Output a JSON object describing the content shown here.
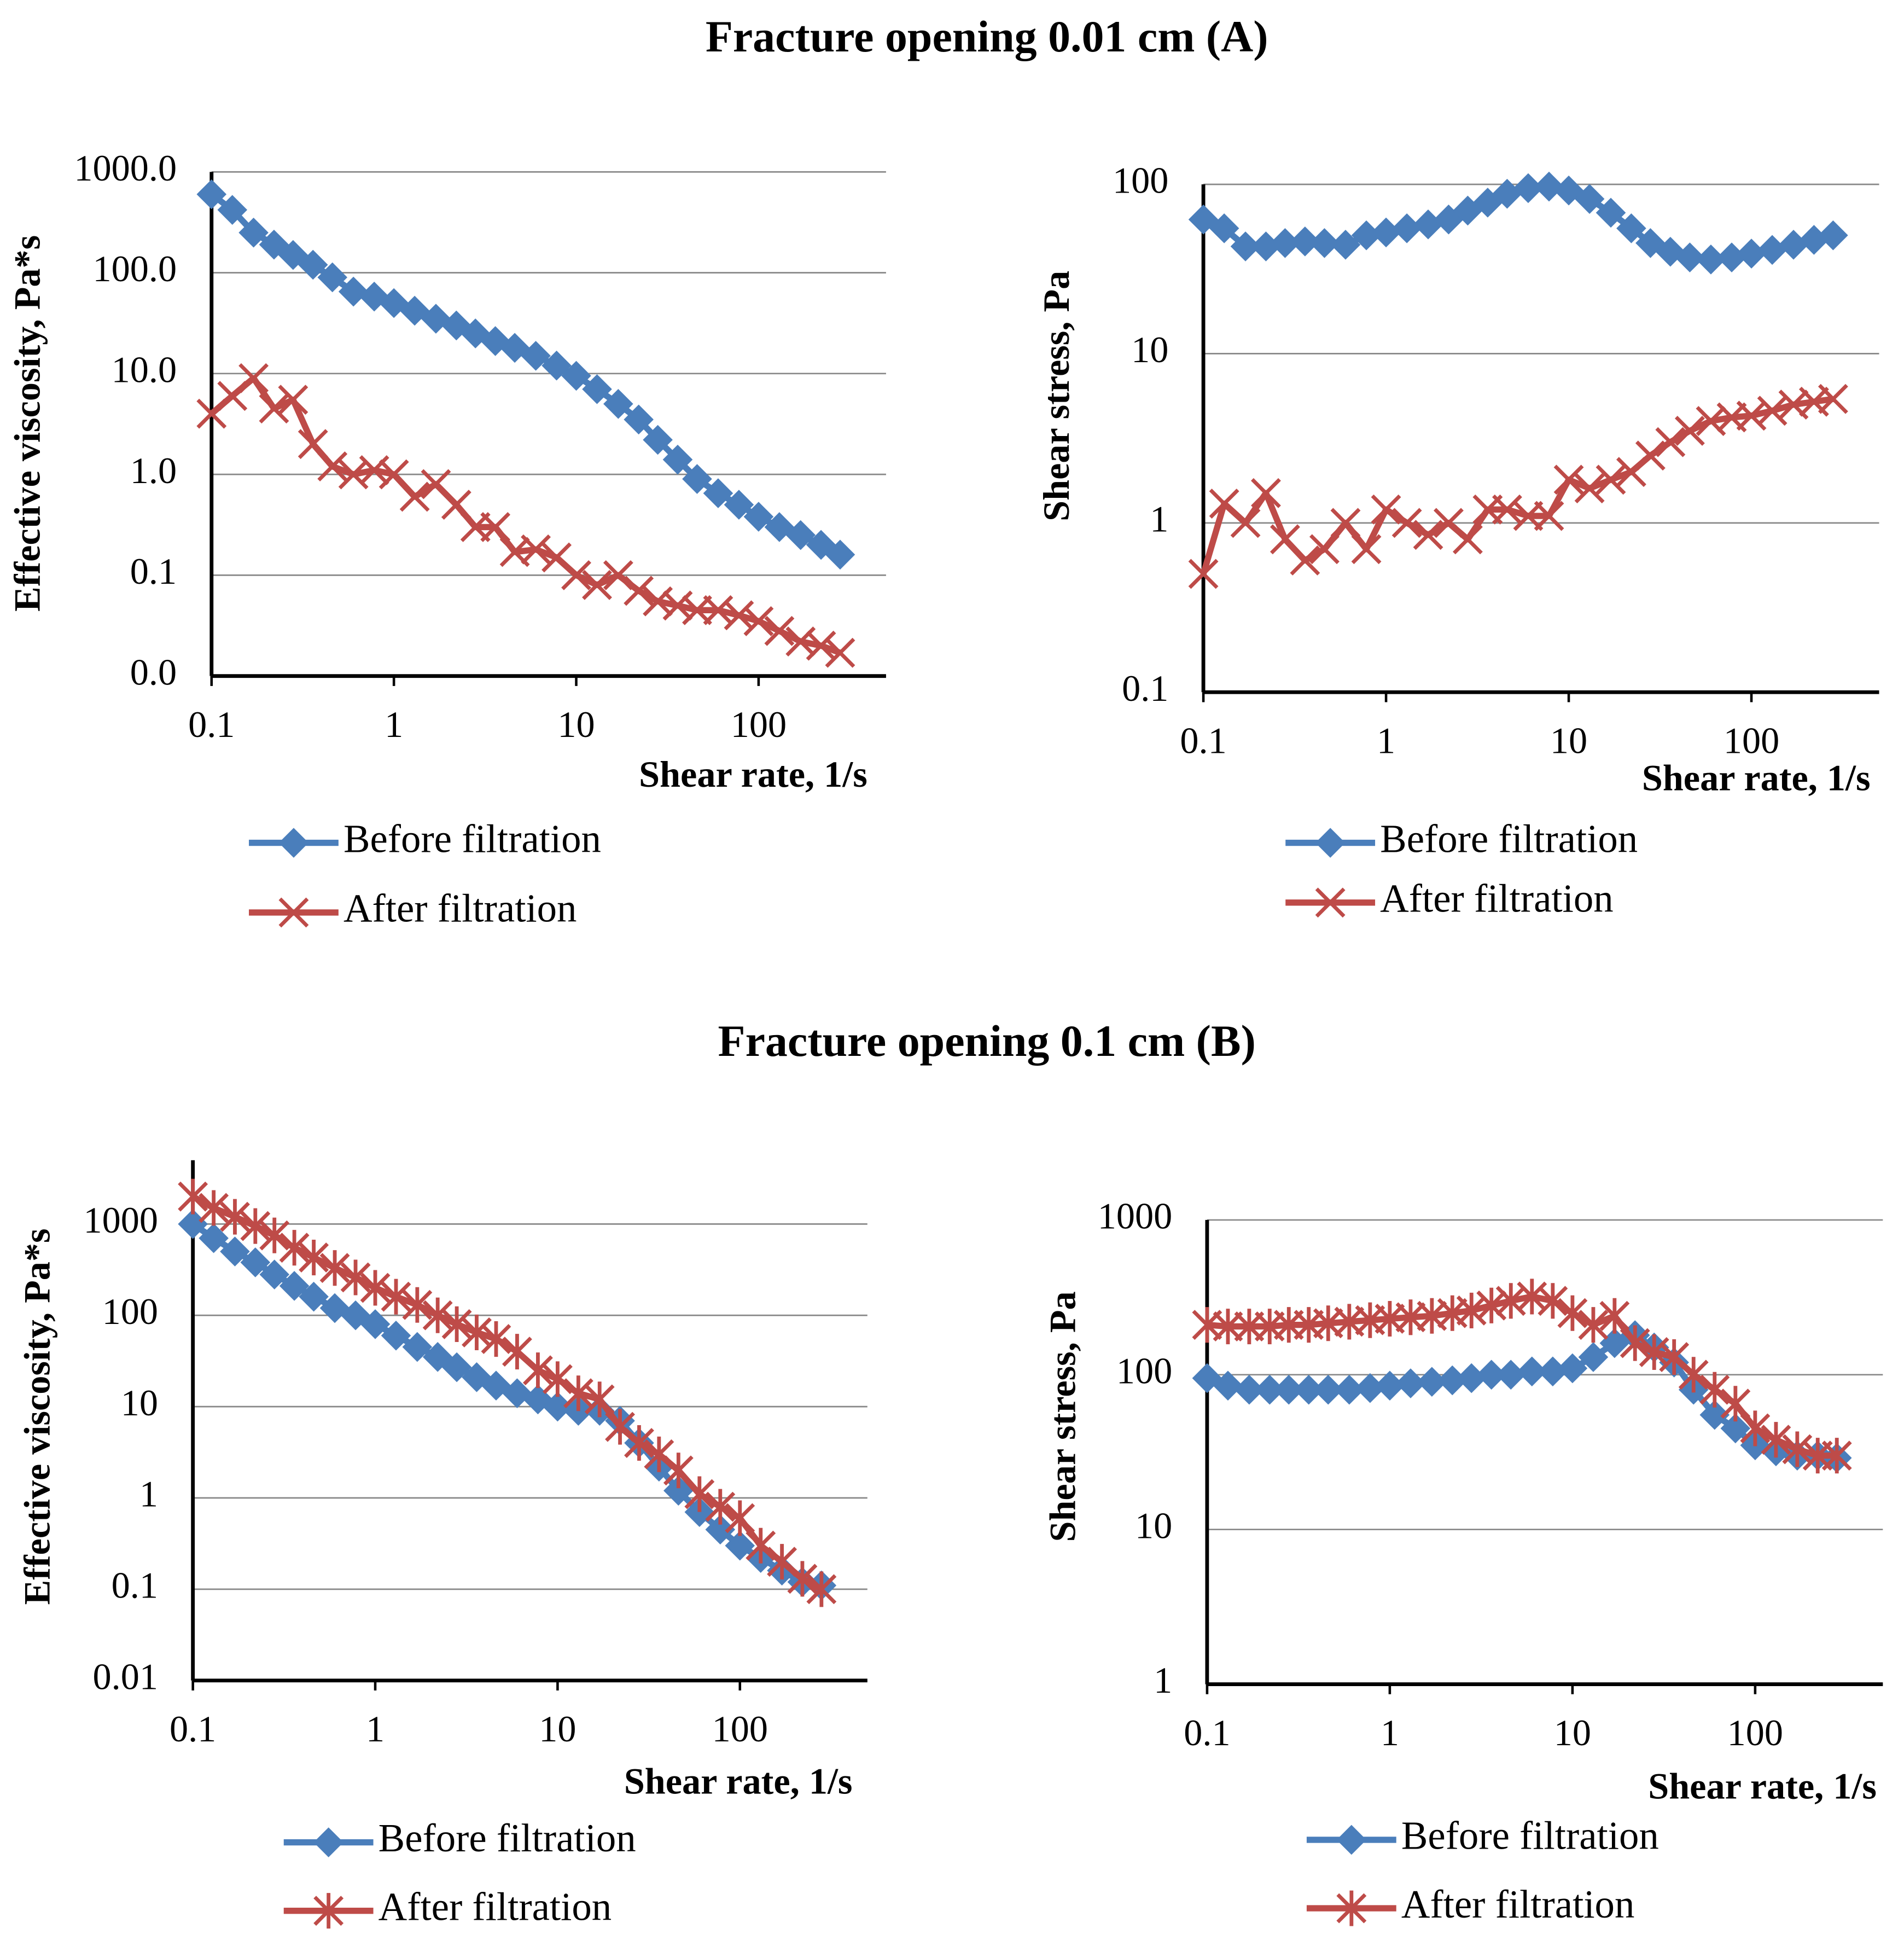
{
  "section_titles": [
    "Fracture opening 0.01 cm (A)",
    "Fracture opening 0.1 cm (B)"
  ],
  "chart_data": [
    {
      "type": "line",
      "x_label": "Shear rate, 1/s",
      "y_label": "Effective viscosity, Pa*s",
      "log_x": true,
      "log_y": true,
      "grid": true,
      "xlim": [
        0.1,
        500
      ],
      "xticks": [
        0.1,
        1,
        10,
        100
      ],
      "ylim": [
        0.01,
        1000
      ],
      "yticks": [
        {
          "value": 1000,
          "label": "1000.0"
        },
        {
          "value": 100,
          "label": "100.0"
        },
        {
          "value": 10,
          "label": "10.0"
        },
        {
          "value": 1,
          "label": "1.0"
        },
        {
          "value": 0.1,
          "label": "0.1"
        },
        {
          "value": 0.01,
          "label": "0.0"
        }
      ],
      "x": [
        0.1,
        0.13,
        0.17,
        0.22,
        0.28,
        0.36,
        0.46,
        0.6,
        0.78,
        1,
        1.3,
        1.7,
        2.2,
        2.8,
        3.6,
        4.6,
        6,
        7.8,
        10,
        13,
        17,
        22,
        28,
        36,
        46,
        60,
        78,
        100,
        130,
        170,
        220,
        280
      ],
      "series": [
        {
          "name": "Before filtration",
          "color": "#4a7ebb",
          "marker": "diamond",
          "values": [
            600,
            420,
            250,
            190,
            150,
            120,
            90,
            65,
            58,
            50,
            42,
            35,
            30,
            25,
            21,
            18,
            15,
            12,
            9.5,
            7,
            5,
            3.5,
            2.2,
            1.4,
            0.9,
            0.65,
            0.5,
            0.38,
            0.3,
            0.25,
            0.2,
            0.16
          ]
        },
        {
          "name": "After filtration",
          "color": "#be4b48",
          "marker": "x",
          "values": [
            4,
            6,
            9,
            4.5,
            5.5,
            2,
            1.2,
            1,
            1.1,
            1,
            0.6,
            0.8,
            0.5,
            0.3,
            0.3,
            0.17,
            0.18,
            0.15,
            0.1,
            0.08,
            0.1,
            0.07,
            0.055,
            0.05,
            0.045,
            0.045,
            0.04,
            0.035,
            0.028,
            0.022,
            0.02,
            0.017
          ]
        }
      ]
    },
    {
      "type": "line",
      "x_label": "Shear rate, 1/s",
      "y_label": "Shear stress, Pa",
      "log_x": true,
      "log_y": true,
      "grid": true,
      "xlim": [
        0.1,
        500
      ],
      "xticks": [
        0.1,
        1,
        10,
        100
      ],
      "ylim": [
        0.1,
        100
      ],
      "yticks": [
        100,
        10,
        1,
        0.1
      ],
      "x": [
        0.1,
        0.13,
        0.17,
        0.22,
        0.28,
        0.36,
        0.46,
        0.6,
        0.78,
        1,
        1.3,
        1.7,
        2.2,
        2.8,
        3.6,
        4.6,
        6,
        7.8,
        10,
        13,
        17,
        22,
        28,
        36,
        46,
        60,
        78,
        100,
        130,
        170,
        220,
        280
      ],
      "series": [
        {
          "name": "Before filtration",
          "color": "#4a7ebb",
          "marker": "diamond",
          "values": [
            62,
            55,
            43,
            43,
            45,
            46,
            45,
            44,
            50,
            52,
            55,
            58,
            62,
            70,
            78,
            88,
            95,
            97,
            92,
            82,
            68,
            55,
            45,
            40,
            37,
            36,
            37,
            39,
            41,
            44,
            47,
            50
          ]
        },
        {
          "name": "After filtration",
          "color": "#be4b48",
          "marker": "x",
          "values": [
            0.5,
            1.3,
            1.0,
            1.5,
            0.8,
            0.6,
            0.7,
            1.0,
            0.7,
            1.2,
            1.0,
            0.85,
            1.0,
            0.8,
            1.2,
            1.2,
            1.1,
            1.1,
            1.8,
            1.6,
            1.8,
            2.0,
            2.5,
            3.0,
            3.5,
            4.0,
            4.2,
            4.3,
            4.6,
            5.0,
            5.2,
            5.4
          ]
        }
      ]
    },
    {
      "type": "line",
      "x_label": "Shear rate, 1/s",
      "y_label": "Effective viscosity, Pa*s",
      "log_x": true,
      "log_y": true,
      "grid": true,
      "xlim": [
        0.1,
        500
      ],
      "xticks": [
        0.1,
        1,
        10,
        100
      ],
      "ylim": [
        0.01,
        5000
      ],
      "yticks": [
        1000,
        100,
        10,
        1,
        0.1,
        0.01
      ],
      "x": [
        0.1,
        0.13,
        0.17,
        0.22,
        0.28,
        0.36,
        0.46,
        0.6,
        0.78,
        1,
        1.3,
        1.7,
        2.2,
        2.8,
        3.6,
        4.6,
        6,
        7.8,
        10,
        13,
        17,
        22,
        28,
        36,
        46,
        60,
        78,
        100,
        130,
        170,
        220,
        280
      ],
      "series": [
        {
          "name": "Before filtration",
          "color": "#4a7ebb",
          "marker": "diamond",
          "values": [
            1000,
            700,
            500,
            380,
            280,
            210,
            160,
            120,
            100,
            80,
            60,
            45,
            35,
            27,
            21,
            17,
            14,
            12,
            10,
            9,
            9,
            7,
            4,
            2.2,
            1.2,
            0.7,
            0.45,
            0.3,
            0.22,
            0.16,
            0.12,
            0.11
          ]
        },
        {
          "name": "After filtration",
          "color": "#be4b48",
          "marker": "star",
          "values": [
            2000,
            1500,
            1200,
            950,
            750,
            550,
            430,
            330,
            260,
            200,
            160,
            130,
            100,
            80,
            65,
            55,
            40,
            25,
            20,
            14,
            12,
            6,
            4,
            3,
            2,
            1.1,
            0.8,
            0.6,
            0.3,
            0.2,
            0.13,
            0.1
          ]
        }
      ]
    },
    {
      "type": "line",
      "x_label": "Shear rate, 1/s",
      "y_label": "Shear stress, Pa",
      "log_x": true,
      "log_y": true,
      "grid": true,
      "xlim": [
        0.1,
        500
      ],
      "xticks": [
        0.1,
        1,
        10,
        100
      ],
      "ylim": [
        1,
        1000
      ],
      "yticks": [
        1000,
        100,
        10,
        1
      ],
      "x": [
        0.1,
        0.13,
        0.17,
        0.22,
        0.28,
        0.36,
        0.46,
        0.6,
        0.78,
        1,
        1.3,
        1.7,
        2.2,
        2.8,
        3.6,
        4.6,
        6,
        7.8,
        10,
        13,
        17,
        22,
        28,
        36,
        46,
        60,
        78,
        100,
        130,
        170,
        220,
        280
      ],
      "series": [
        {
          "name": "Before filtration",
          "color": "#4a7ebb",
          "marker": "diamond",
          "values": [
            95,
            85,
            80,
            80,
            80,
            80,
            80,
            80,
            82,
            85,
            88,
            90,
            92,
            95,
            100,
            100,
            105,
            105,
            110,
            130,
            160,
            180,
            150,
            120,
            80,
            55,
            45,
            35,
            32,
            30,
            30,
            29
          ]
        },
        {
          "name": "After filtration",
          "color": "#be4b48",
          "marker": "star",
          "values": [
            210,
            205,
            205,
            205,
            210,
            210,
            215,
            220,
            225,
            230,
            235,
            240,
            250,
            260,
            280,
            300,
            320,
            300,
            250,
            210,
            240,
            160,
            140,
            130,
            100,
            80,
            65,
            45,
            38,
            33,
            30,
            30
          ]
        }
      ]
    }
  ]
}
